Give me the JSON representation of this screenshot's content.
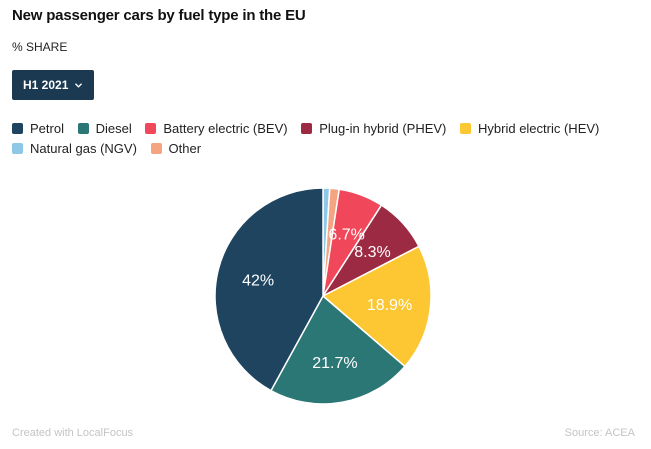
{
  "title": "New passenger cars by fuel type in the EU",
  "subtitle": "% SHARE",
  "period_select": {
    "selected": "H1 2021",
    "icon": "chevron-down-icon"
  },
  "footer": {
    "credit": "Created with LocalFocus",
    "source": "Source: ACEA"
  },
  "chart_data": {
    "type": "pie",
    "title": "New passenger cars by fuel type in the EU",
    "subtitle": "% SHARE",
    "legend_position": "top-left",
    "slices": [
      {
        "name": "Petrol",
        "value": 42.0,
        "label": "42%",
        "color": "#1e4460"
      },
      {
        "name": "Diesel",
        "value": 21.7,
        "label": "21.7%",
        "color": "#2a7776"
      },
      {
        "name": "Hybrid electric (HEV)",
        "value": 18.9,
        "label": "18.9%",
        "color": "#fcc733"
      },
      {
        "name": "Plug-in hybrid (PHEV)",
        "value": 8.3,
        "label": "8.3%",
        "color": "#9d2a43"
      },
      {
        "name": "Battery electric (BEV)",
        "value": 6.7,
        "label": "6.7%",
        "color": "#f0485a"
      },
      {
        "name": "Other",
        "value": 1.4,
        "label": "",
        "color": "#f5a481"
      },
      {
        "name": "Natural gas (NGV)",
        "value": 1.0,
        "label": "",
        "color": "#8ec8e6"
      }
    ],
    "legend": [
      {
        "name": "Petrol",
        "color": "#1e4460"
      },
      {
        "name": "Diesel",
        "color": "#2a7776"
      },
      {
        "name": "Battery electric (BEV)",
        "color": "#f0485a"
      },
      {
        "name": "Plug-in hybrid (PHEV)",
        "color": "#9d2a43"
      },
      {
        "name": "Hybrid electric (HEV)",
        "color": "#fcc733"
      },
      {
        "name": "Natural gas (NGV)",
        "color": "#8ec8e6"
      },
      {
        "name": "Other",
        "color": "#f5a481"
      }
    ]
  }
}
